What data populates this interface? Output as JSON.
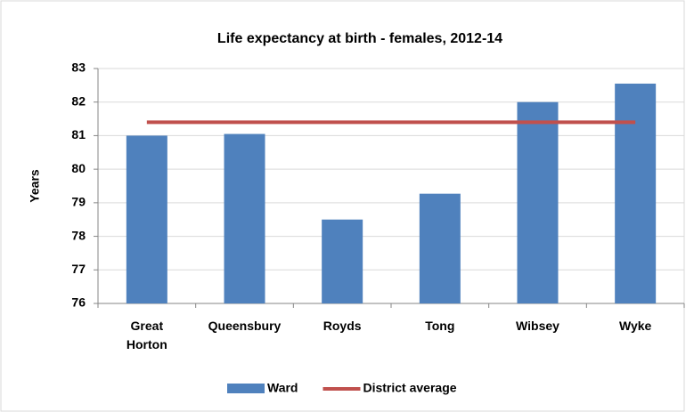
{
  "chart_data": {
    "type": "bar",
    "title": "Life expectancy at birth - females, 2012-14",
    "y_label": "Years",
    "categories": [
      "Great Horton",
      "Queensbury",
      "Royds",
      "Tong",
      "Wibsey",
      "Wyke"
    ],
    "series": [
      {
        "name": "Ward",
        "type": "bar",
        "color": "#4f81bd",
        "values": [
          81.0,
          81.05,
          78.5,
          79.27,
          82.0,
          82.55
        ]
      },
      {
        "name": "District average",
        "type": "line",
        "color": "#c0504d",
        "values": [
          81.4,
          81.4,
          81.4,
          81.4,
          81.4,
          81.4
        ]
      }
    ],
    "ylim": [
      76,
      83
    ],
    "yticks": [
      76,
      77,
      78,
      79,
      80,
      81,
      82,
      83
    ],
    "grid": true,
    "legend": "bottom"
  }
}
